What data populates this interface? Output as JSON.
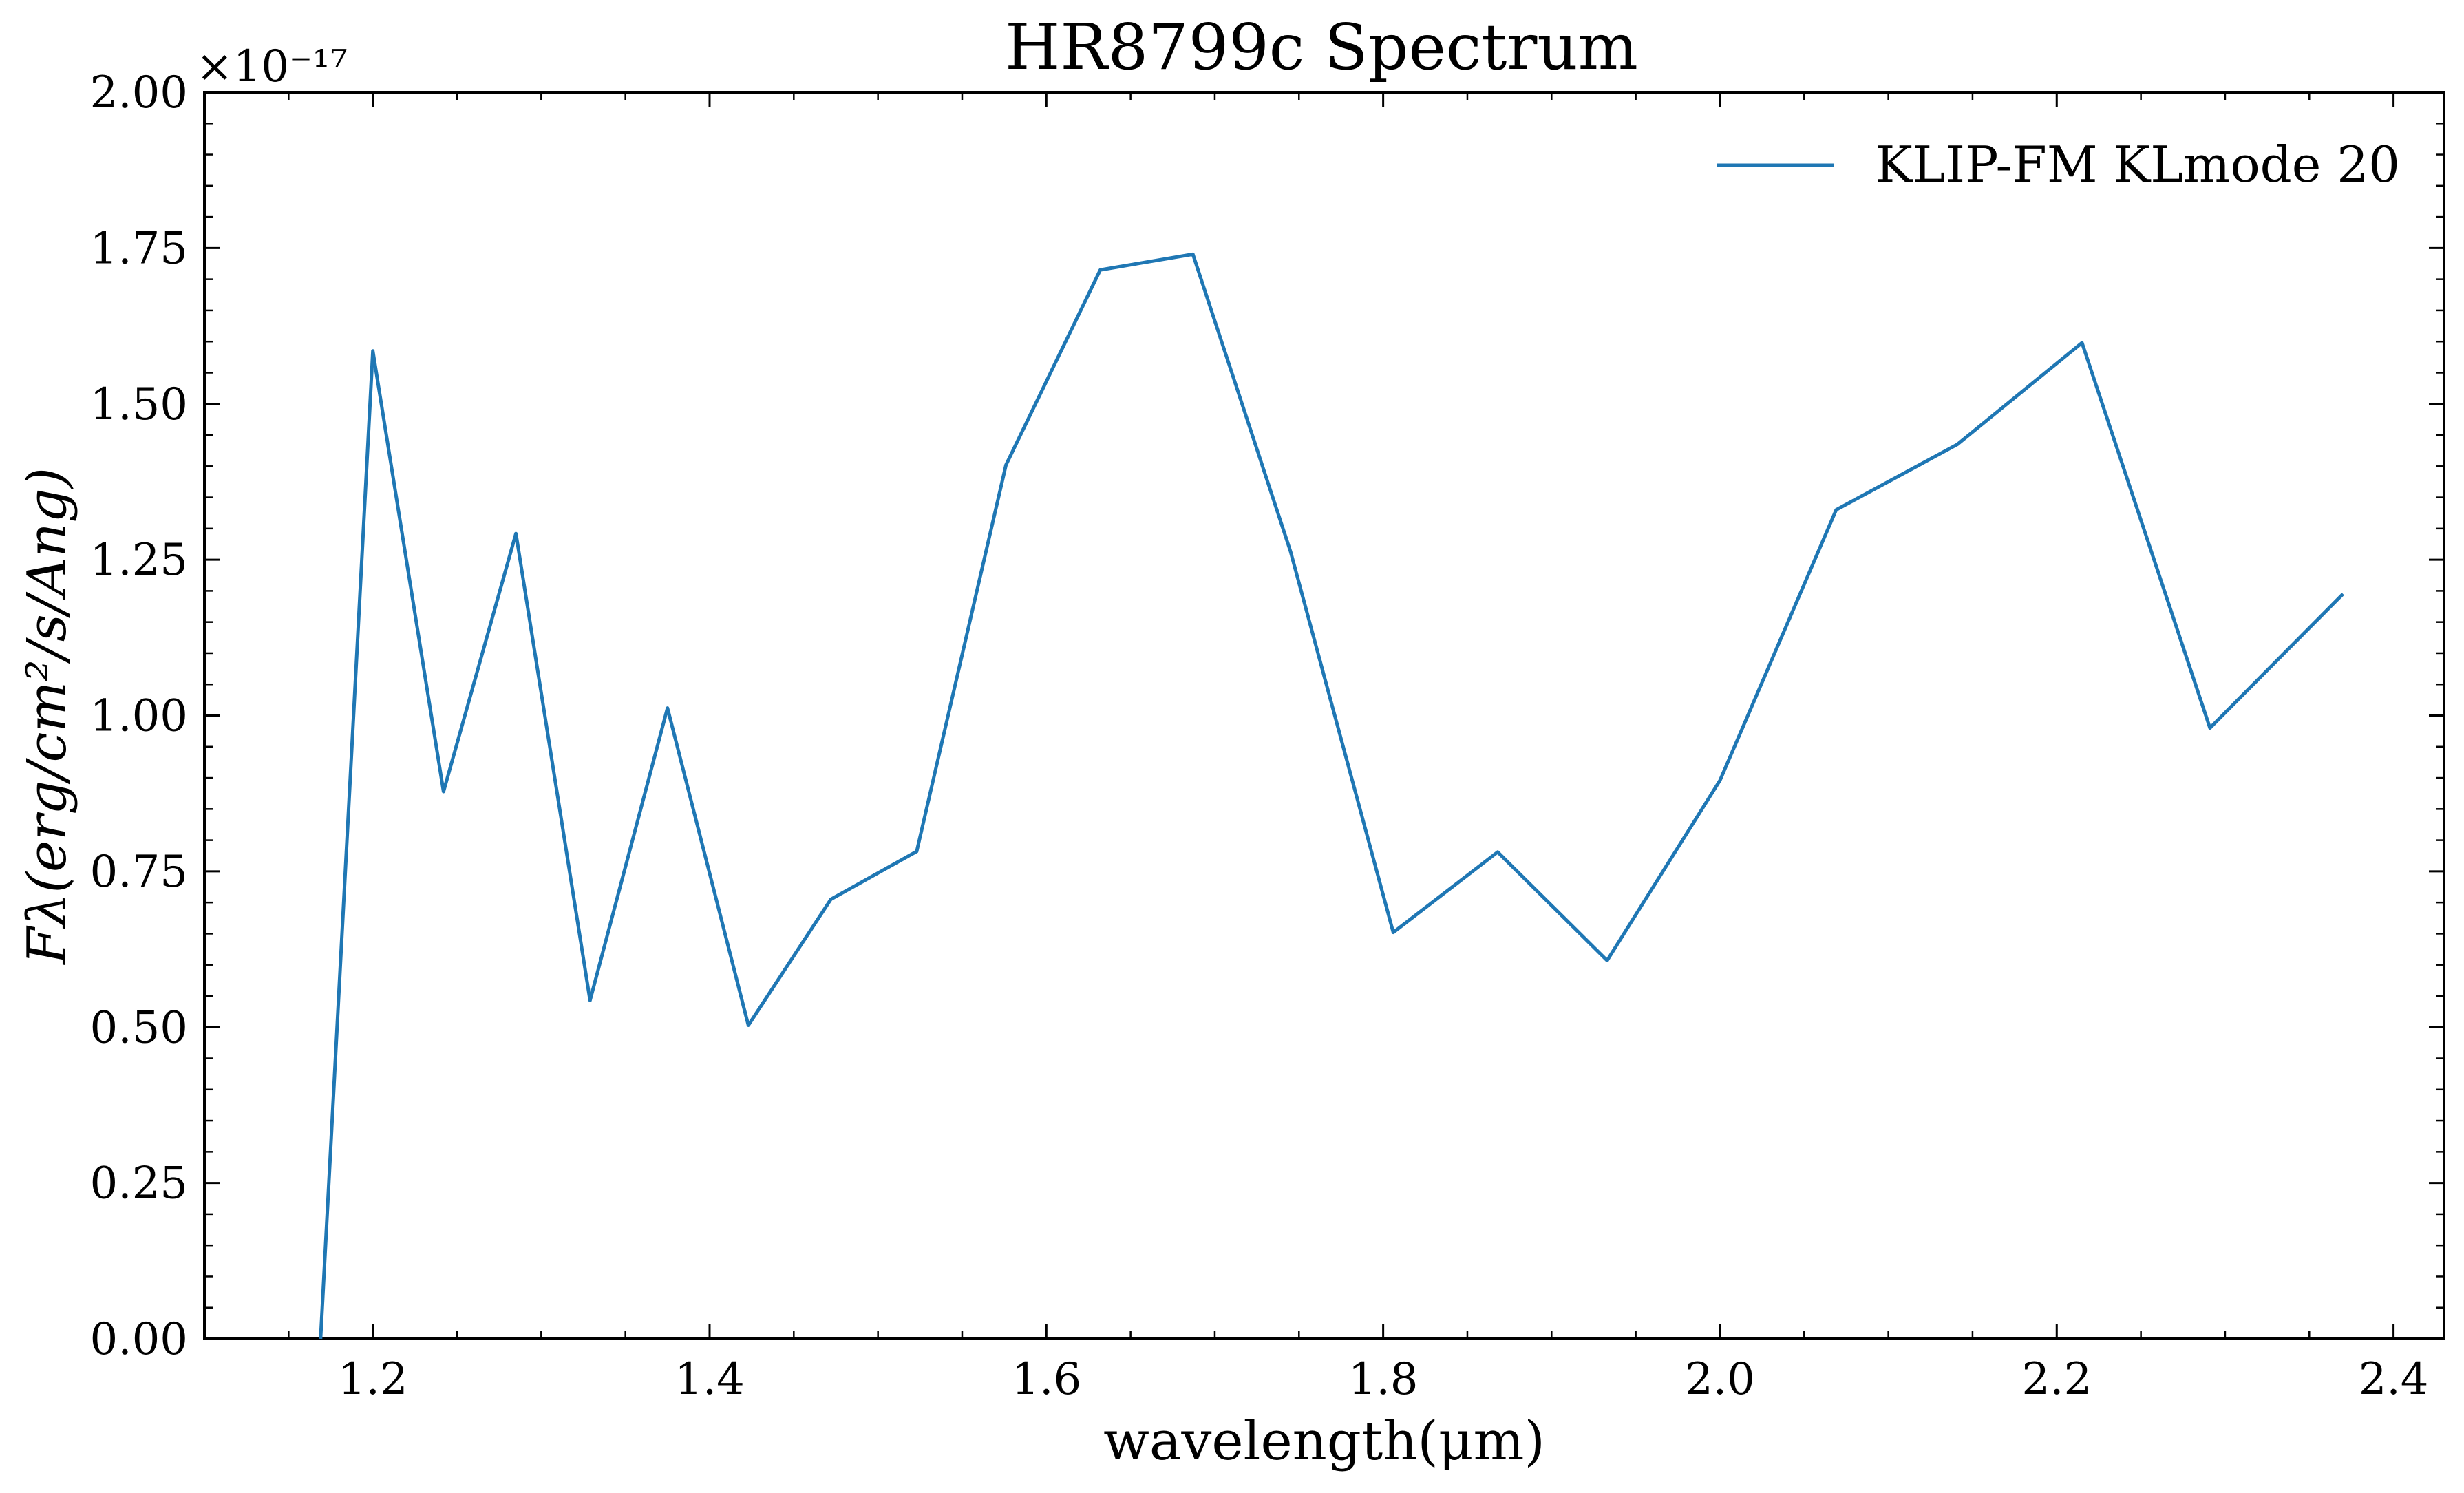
{
  "chart_data": {
    "type": "line",
    "title": "HR8799c Spectrum",
    "xlabel": "wavelength(μm)",
    "ylabel": "Fλ(erg/cm²/s/Ang)",
    "y_offset_label": "×10⁻¹⁷",
    "xlim": [
      1.1,
      2.43
    ],
    "ylim": [
      0,
      2.0
    ],
    "x_ticks": [
      1.2,
      1.4,
      1.6,
      1.8,
      2.0,
      2.2,
      2.4
    ],
    "x_tick_labels": [
      "1.2",
      "1.4",
      "1.6",
      "1.8",
      "2.0",
      "2.2",
      "2.4"
    ],
    "y_ticks": [
      0,
      0.25,
      0.5,
      0.75,
      1.0,
      1.25,
      1.5,
      1.75,
      2.0
    ],
    "y_tick_labels": [
      "0.00",
      "0.25",
      "0.50",
      "0.75",
      "1.00",
      "1.25",
      "1.50",
      "1.75",
      "2.00"
    ],
    "grid": false,
    "legend_position": "top-right",
    "series": [
      {
        "name": "KLIP-FM KLmode 20",
        "color": "#1f77b4",
        "x": [
          1.169,
          1.2,
          1.242,
          1.285,
          1.329,
          1.375,
          1.423,
          1.472,
          1.523,
          1.576,
          1.632,
          1.687,
          1.745,
          1.806,
          1.868,
          1.933,
          2.0,
          2.069,
          2.141,
          2.215,
          2.291,
          2.37
        ],
        "values": [
          0.0,
          1.585,
          0.878,
          1.292,
          0.543,
          1.012,
          0.503,
          0.705,
          0.782,
          1.402,
          1.715,
          1.74,
          1.263,
          0.652,
          0.781,
          0.607,
          0.896,
          1.33,
          1.435,
          1.598,
          0.98,
          1.195
        ]
      }
    ]
  }
}
